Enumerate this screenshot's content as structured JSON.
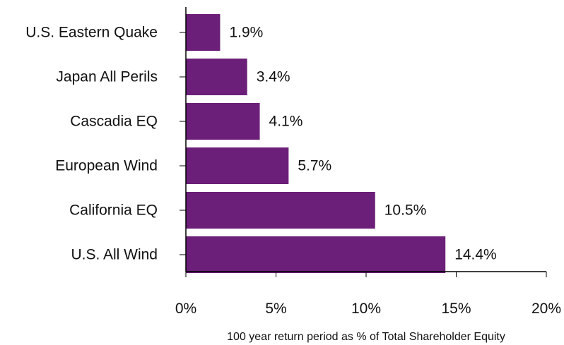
{
  "chart_data": {
    "type": "bar",
    "orientation": "horizontal",
    "categories": [
      "U.S. Eastern Quake",
      "Japan All Perils",
      "Cascadia EQ",
      "European Wind",
      "California EQ",
      "U.S. All Wind"
    ],
    "values": [
      1.9,
      3.4,
      4.1,
      5.7,
      10.5,
      14.4
    ],
    "value_labels": [
      "1.9%",
      "3.4%",
      "4.1%",
      "5.7%",
      "10.5%",
      "14.4%"
    ],
    "xticks": [
      0,
      5,
      10,
      15,
      20
    ],
    "xtick_labels": [
      "0%",
      "5%",
      "10%",
      "15%",
      "20%"
    ],
    "xlim": [
      0,
      20
    ],
    "xlabel": "100 year return period as % of Total Shareholder Equity",
    "ylabel": "",
    "title": "",
    "grid": false,
    "legend": "none",
    "bar_color": "#6b1f78"
  }
}
